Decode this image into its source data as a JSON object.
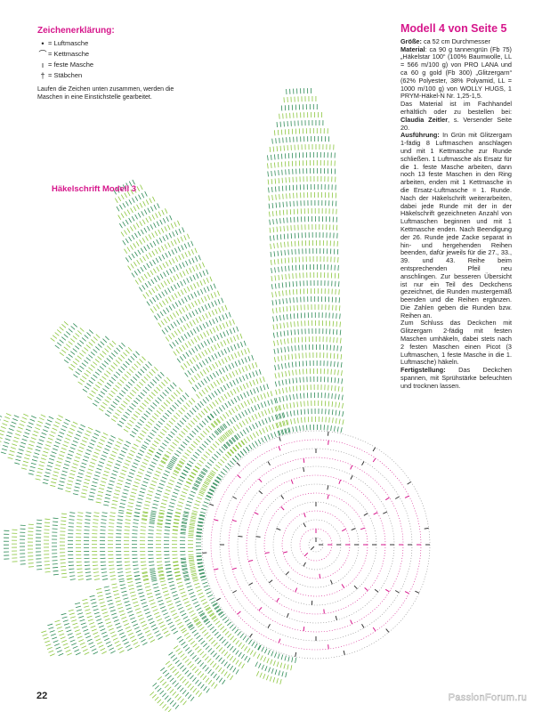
{
  "legend": {
    "title": "Zeichenerklärung:",
    "items": [
      {
        "symbol": "•",
        "label": "= Luftmasche"
      },
      {
        "symbol": "⌒",
        "label": "= Kettmasche"
      },
      {
        "symbol": "ı",
        "label": "= feste Masche"
      },
      {
        "symbol": "†",
        "label": "= Stäbchen"
      }
    ],
    "note": "Laufen die Zeichen unten zusammen, werden die Maschen in eine Einstichstelle gearbeitet."
  },
  "chart": {
    "title": "Häkelschrift Modell 3",
    "colors": {
      "green_dark": "#2e8b57",
      "green_light": "#8cc63f",
      "pink": "#d6168b",
      "black": "#333333"
    }
  },
  "article": {
    "title": "Modell 4 von Seite 5",
    "size_label": "Größe:",
    "size_text": " ca 52 cm Durchmesser",
    "material_label": "Material",
    "material_text": ": ca 90 g tannengrün (Fb 75) „Häkelstar 100“ (100% Baumwolle, LL = 566 m/100 g) von PRO LANA und ca 60 g gold (Fb 300) „Glitzergarn“ (62% Polyester, 38% Polyamid, LL = 1000 m/100 g) von WOLLY HUGS, 1 PRYM-Häkel-N Nr. 1,25-1,5.",
    "supplier_text": "Das Material ist im Fachhandel erhältlich oder zu bestellen bei: ",
    "supplier_name": "Claudia Zeitler",
    "supplier_suffix": ", s. Versender Seite 20.",
    "execution_label": "Ausführung:",
    "execution_text": " In Grün mit Glitzergarn 1-fädig 8 Luftmaschen anschlagen und mit 1 Kettmasche zur Runde schließen. 1 Luftmasche als Ersatz für die 1. feste Masche arbeiten, dann noch 13 feste Maschen in den Ring arbeiten, enden mit 1 Kettmasche in die Ersatz-Luftmasche = 1. Runde. Nach der Häkelschrift weiterarbeiten, dabei jede Runde mit der in der Häkelschrift gezeichneten Anzahl von Luftmaschen beginnen und mit 1 Kettmasche enden. Nach Beendigung der 26. Runde jede Zacke separat in hin- und hergehenden Reihen beenden, dafür jeweils für die 27., 33., 39. und 43. Reihe beim entsprechenden Pfeil neu anschlingen. Zur besseren Übersicht ist nur ein Teil des Deckchens gezeichnet, die Runden mustergemäß beenden und die Reihen ergänzen. Die Zahlen geben die Runden bzw. Reihen an.",
    "finish_text": "Zum Schluss das Deckchen mit Glitzergarn 2-fädig mit festen Maschen umhäkeln, dabei stets nach 2 festen Maschen einen Picot (3 Luftmaschen, 1 feste Masche in die 1. Luftmasche) häkeln.",
    "completion_label": "Fertigstellung:",
    "completion_text": " Das Deckchen spannen, mit Sprühstärke befeuchten und trocknen lassen."
  },
  "footer": {
    "page_number": "22",
    "watermark": "PassionForum.ru"
  }
}
